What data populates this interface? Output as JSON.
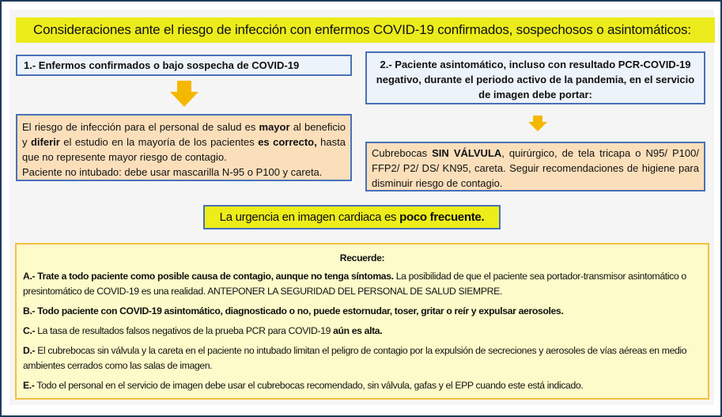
{
  "title": "Consideraciones ante el riesgo de infección con enfermos COVID-19 confirmados, sospechosos o asintomáticos:",
  "left": {
    "header": "1.- Enfermos confirmados o bajo sospecha de COVID-19",
    "body": [
      {
        "t": "El riesgo de infección para el personal de salud es ",
        "b": false
      },
      {
        "t": "mayor",
        "b": true
      },
      {
        "t": " al beneficio y ",
        "b": false
      },
      {
        "t": "diferir",
        "b": true
      },
      {
        "t": " el estudio en la mayoría de los pacientes ",
        "b": false
      },
      {
        "t": "es correcto,",
        "b": true
      },
      {
        "t": " hasta que no represente mayor riesgo de contagio.",
        "b": false
      },
      {
        "t": "Paciente no intubado: debe usar mascarilla N-95 o P100 y careta.",
        "b": false
      }
    ]
  },
  "right": {
    "header": "2.- Paciente asintomático, incluso con resultado PCR-COVID-19 negativo, durante el periodo activo de la pandemia, en el servicio de imagen debe portar:",
    "body": [
      {
        "t": "Cubrebocas ",
        "b": false
      },
      {
        "t": "SIN VÁLVULA",
        "b": true
      },
      {
        "t": ", quirúrgico, de tela tricapa o N95/ P100/ FFP2/ P2/ DS/ KN95, careta. Seguir recomendaciones de higiene para disminuir riesgo de contagio.",
        "b": false
      }
    ]
  },
  "urgency": {
    "normal": "La urgencia en imagen cardiaca es ",
    "bold": "poco frecuente."
  },
  "reminder": {
    "heading": "Recuerde:",
    "items": [
      {
        "label": "A.-",
        "bold": " Trate a todo paciente como posible causa de contagio, aunque no tenga síntomas.",
        "text": " La posibilidad de que el paciente sea portador-transmisor asintomático o presintomático de COVID-19 es una realidad. ANTEPONER LA SEGURIDAD DEL PERSONAL DE SALUD SIEMPRE.",
        "tail": ""
      },
      {
        "label": "B.-",
        "bold": " Todo paciente con COVID-19 asintomático, diagnosticado o no, puede estornudar, toser, gritar o reír y expulsar aerosoles.",
        "text": "",
        "tail": ""
      },
      {
        "label": "C.-",
        "bold": "",
        "text": " La tasa de resultados falsos negativos de la prueba PCR para COVID-19 ",
        "tail": "aún es alta."
      },
      {
        "label": "D.-",
        "bold": "",
        "text": " El cubrebocas sin válvula y la careta en el paciente no intubado limitan el peligro de contagio por la expulsión de secreciones y aerosoles de vías aéreas en medio ambientes cerrados como las salas de imagen.",
        "tail": ""
      },
      {
        "label": "E.-",
        "bold": "",
        "text": " Todo el personal en el servicio de imagen debe usar el cubrebocas recomendado, sin válvula, gafas y el EPP cuando este está indicado.",
        "tail": ""
      }
    ]
  },
  "colors": {
    "title_bg": "#ecec1c",
    "box_border": "#4a70b8",
    "orange_box": "#fbdfbb",
    "reminder_bg": "#fdfbc9",
    "arrow": "#f5b800",
    "frame": "#1f3b5a"
  }
}
